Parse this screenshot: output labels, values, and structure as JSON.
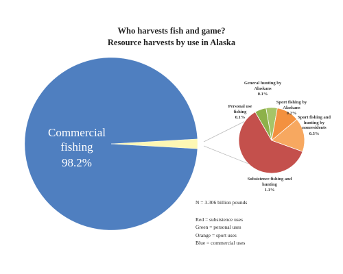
{
  "chart_data": [
    {
      "type": "pie",
      "title": "Who harvests fish and game?",
      "subtitle": "Resource harvests by use in Alaska",
      "categories": [
        "Commercial fishing",
        null
      ],
      "values": [
        98.2,
        1.8
      ],
      "value_labels": [
        "98.2%",
        null
      ],
      "colors": [
        "#4f7fc0",
        "#fdf7b4"
      ]
    },
    {
      "type": "pie",
      "categories": [
        "General hunting by Alaskans",
        "Sport fishing by Alaskans",
        "Sport fishing and hunting by nonresidents",
        "Subsistence fishing and hunting",
        "Personal use fishing"
      ],
      "values": [
        0.1,
        0.2,
        0.3,
        1.1,
        0.1
      ],
      "value_labels": [
        "0.1%",
        "0.2%",
        "0.3%",
        "1.1%",
        "0.1%"
      ],
      "colors": [
        "#a6c468",
        "#f3913f",
        "#f7a860",
        "#c4504c",
        "#8db14a"
      ]
    }
  ],
  "notes": [
    "N = 3.306 billion pounds",
    "Red = subsistence uses",
    "Green = personal uses",
    "Orange = sport uses",
    "Blue = commercial uses"
  ]
}
